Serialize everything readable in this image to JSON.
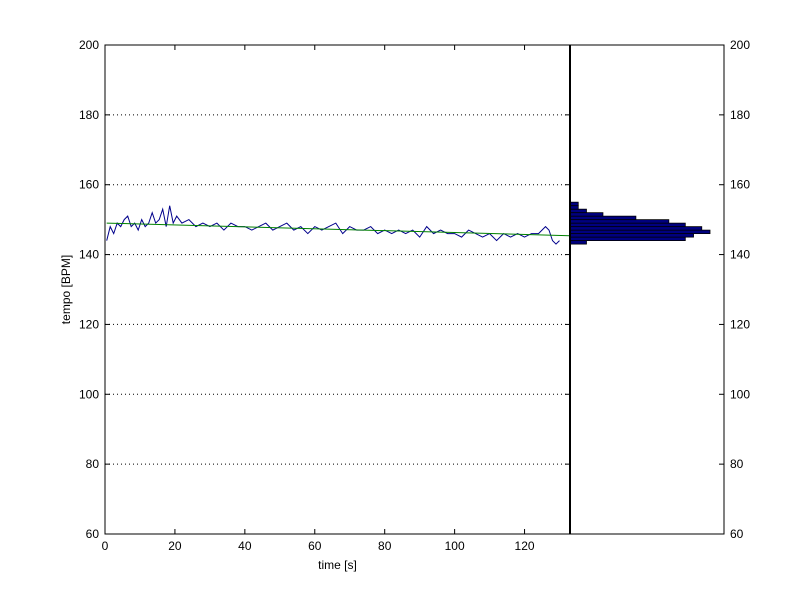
{
  "colors": {
    "background": "#ffffff",
    "axes": "#000000",
    "tempo_line": "#00008b",
    "trend_line": "#008000",
    "histogram_fill": "#00007f",
    "histogram_edge": "#000000",
    "grid": "#000000"
  },
  "chart_data": [
    {
      "type": "line",
      "title": "",
      "xlabel": "time [s]",
      "ylabel": "tempo [BPM]",
      "xlim": [
        0,
        133
      ],
      "ylim": [
        60,
        200
      ],
      "xticks": [
        0,
        20,
        40,
        60,
        80,
        100,
        120
      ],
      "yticks": [
        60,
        80,
        100,
        120,
        140,
        160,
        180,
        200
      ],
      "grid": "horizontal dotted",
      "series": [
        {
          "color": "#00008b",
          "x": [
            0.5,
            1.5,
            2.5,
            3.5,
            4.5,
            5.5,
            6.5,
            7.5,
            8.5,
            9.5,
            10.5,
            11.5,
            12.5,
            13.5,
            14.5,
            15.5,
            16.5,
            17.5,
            18.5,
            19.5,
            20.5,
            22,
            24,
            26,
            28,
            30,
            32,
            34,
            36,
            38,
            40,
            42,
            44,
            46,
            48,
            50,
            52,
            54,
            56,
            58,
            60,
            62,
            64,
            66,
            68,
            70,
            72,
            74,
            76,
            78,
            80,
            82,
            84,
            86,
            88,
            90,
            92,
            94,
            96,
            98,
            100,
            102,
            104,
            106,
            108,
            110,
            112,
            114,
            116,
            118,
            120,
            122,
            124,
            125,
            126,
            127,
            128,
            129,
            130
          ],
          "y": [
            144,
            148,
            146,
            149,
            148,
            150,
            151,
            148,
            149,
            147,
            150,
            148,
            149,
            152,
            149,
            150,
            153,
            148,
            154,
            149,
            151,
            149,
            150,
            148,
            149,
            148,
            149,
            147,
            149,
            148,
            148,
            147,
            148,
            149,
            147,
            148,
            149,
            147,
            148,
            146,
            148,
            147,
            148,
            149,
            146,
            148,
            147,
            147,
            148,
            146,
            147,
            146,
            147,
            146,
            147,
            145,
            148,
            146,
            147,
            146,
            146,
            145,
            147,
            146,
            145,
            146,
            144,
            146,
            145,
            146,
            145,
            146,
            146,
            147,
            148,
            147,
            144,
            143,
            144
          ]
        },
        {
          "color": "#008000",
          "x": [
            0.5,
            133
          ],
          "y": [
            149,
            145.4
          ]
        }
      ]
    },
    {
      "type": "bar",
      "orientation": "horizontal",
      "title": "",
      "xlabel": "",
      "ylabel": "",
      "ylim": [
        60,
        200
      ],
      "yticks": [
        60,
        80,
        100,
        120,
        140,
        160,
        180,
        200
      ],
      "bins": [
        {
          "low": 143,
          "high": 144,
          "count": 2
        },
        {
          "low": 144,
          "high": 145,
          "count": 14
        },
        {
          "low": 145,
          "high": 146,
          "count": 15
        },
        {
          "low": 146,
          "high": 147,
          "count": 17
        },
        {
          "low": 147,
          "high": 148,
          "count": 16
        },
        {
          "low": 148,
          "high": 149,
          "count": 14
        },
        {
          "low": 149,
          "high": 150,
          "count": 12
        },
        {
          "low": 150,
          "high": 151,
          "count": 8
        },
        {
          "low": 151,
          "high": 152,
          "count": 4
        },
        {
          "low": 152,
          "high": 153,
          "count": 2
        },
        {
          "low": 153,
          "high": 154,
          "count": 1
        },
        {
          "low": 154,
          "high": 155,
          "count": 1
        }
      ],
      "max_count": 17
    }
  ]
}
